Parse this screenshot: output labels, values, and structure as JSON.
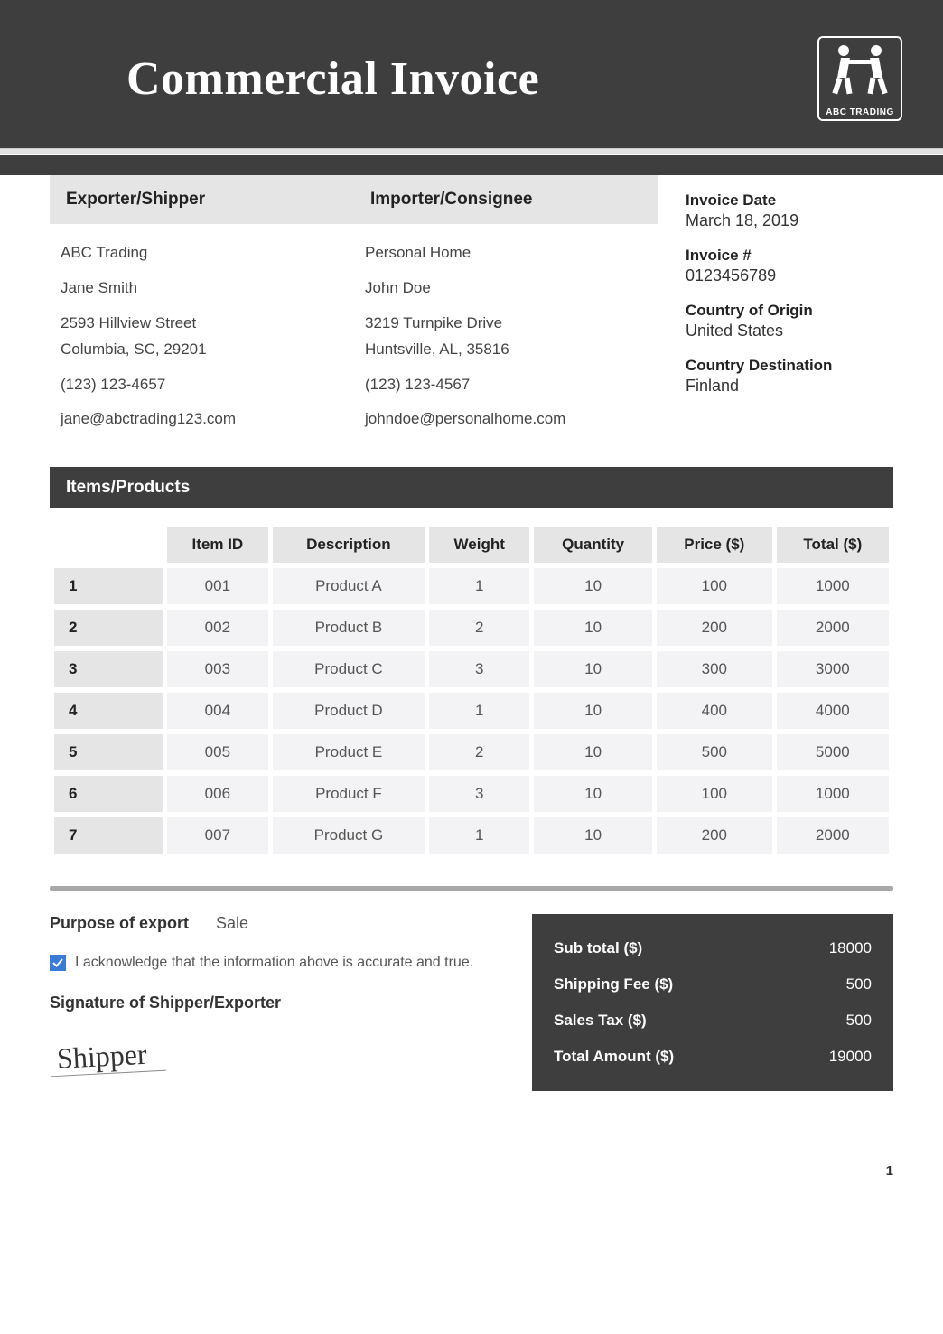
{
  "header": {
    "title": "Commercial Invoice",
    "logo_label": "ABC TRADING"
  },
  "parties": {
    "exporter": {
      "heading": "Exporter/Shipper",
      "company": "ABC Trading",
      "name": "Jane Smith",
      "address1": "2593 Hillview Street",
      "address2": "Columbia, SC, 29201",
      "phone": "(123) 123-4657",
      "email": "jane@abctrading123.com"
    },
    "importer": {
      "heading": "Importer/Consignee",
      "company": "Personal Home",
      "name": "John Doe",
      "address1": "3219 Turnpike Drive",
      "address2": "Huntsville, AL, 35816",
      "phone": "(123) 123-4567",
      "email": "johndoe@personalhome.com"
    }
  },
  "meta": {
    "invoice_date_label": "Invoice Date",
    "invoice_date": "March 18, 2019",
    "invoice_num_label": "Invoice #",
    "invoice_num": "0123456789",
    "origin_label": "Country of Origin",
    "origin": "United States",
    "dest_label": "Country Destination",
    "dest": "Finland"
  },
  "items_section_title": "Items/Products",
  "columns": {
    "item_id": "Item ID",
    "description": "Description",
    "weight": "Weight",
    "quantity": "Quantity",
    "price": "Price ($)",
    "total": "Total ($)"
  },
  "rows": [
    {
      "n": "1",
      "id": "001",
      "desc": "Product A",
      "wt": "1",
      "qty": "10",
      "price": "100",
      "total": "1000"
    },
    {
      "n": "2",
      "id": "002",
      "desc": "Product B",
      "wt": "2",
      "qty": "10",
      "price": "200",
      "total": "2000"
    },
    {
      "n": "3",
      "id": "003",
      "desc": "Product C",
      "wt": "3",
      "qty": "10",
      "price": "300",
      "total": "3000"
    },
    {
      "n": "4",
      "id": "004",
      "desc": "Product D",
      "wt": "1",
      "qty": "10",
      "price": "400",
      "total": "4000"
    },
    {
      "n": "5",
      "id": "005",
      "desc": "Product E",
      "wt": "2",
      "qty": "10",
      "price": "500",
      "total": "5000"
    },
    {
      "n": "6",
      "id": "006",
      "desc": "Product F",
      "wt": "3",
      "qty": "10",
      "price": "100",
      "total": "1000"
    },
    {
      "n": "7",
      "id": "007",
      "desc": "Product G",
      "wt": "1",
      "qty": "10",
      "price": "200",
      "total": "2000"
    }
  ],
  "purpose": {
    "label": "Purpose of export",
    "value": "Sale"
  },
  "ack_text": "I acknowledge that the information above is accurate and true.",
  "signature_label": "Signature of Shipper/Exporter",
  "signature_text": "Shipper",
  "totals": {
    "subtotal_label": "Sub total ($)",
    "subtotal": "18000",
    "shipping_label": "Shipping Fee ($)",
    "shipping": "500",
    "tax_label": "Sales Tax ($)",
    "tax": "500",
    "total_label": "Total Amount ($)",
    "total": "19000"
  },
  "page_number": "1",
  "colors": {
    "header_bg": "#3e3e3e",
    "light_cell": "#e5e5e5",
    "data_cell": "#f3f3f5",
    "checkbox": "#3a7bd5"
  }
}
